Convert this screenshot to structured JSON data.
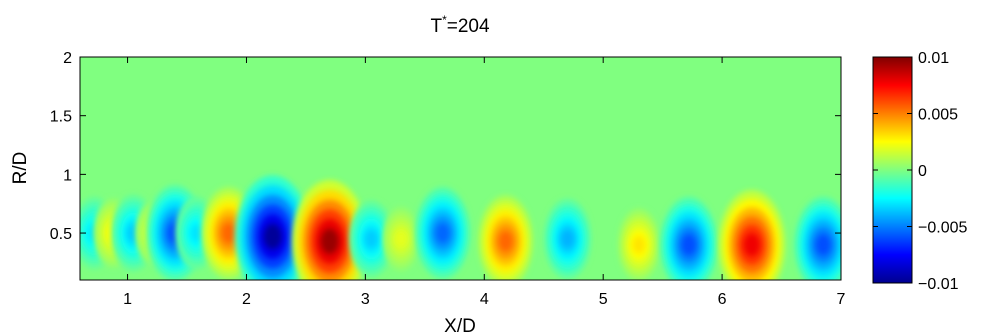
{
  "chart_data": {
    "type": "heatmap",
    "subtype": "filled-contour",
    "title_main": "T",
    "title_sup": "*",
    "title_rest": "=204",
    "xlabel": "X/D",
    "ylabel": "R/D",
    "xlim": [
      0.6,
      7.0
    ],
    "ylim": [
      0.1,
      2.0
    ],
    "xticks": [
      1,
      2,
      3,
      4,
      5,
      6,
      7
    ],
    "xtick_labels": [
      "1",
      "2",
      "3",
      "4",
      "5",
      "6",
      "7"
    ],
    "yticks": [
      0.5,
      1,
      1.5,
      2
    ],
    "ytick_labels": [
      "0.5",
      "1",
      "1.5",
      "2"
    ],
    "colormap": "jet",
    "clim": [
      -0.01,
      0.01
    ],
    "colorbar_ticks": [
      -0.01,
      -0.005,
      0,
      0.005,
      0.01
    ],
    "colorbar_tick_labels": [
      "−0.01",
      "−0.005",
      "0",
      "0.005",
      "0.01"
    ],
    "features": [
      {
        "x": 0.72,
        "r": 0.5,
        "value": -0.003
      },
      {
        "x": 0.88,
        "r": 0.5,
        "value": 0.0025
      },
      {
        "x": 1.05,
        "r": 0.5,
        "value": -0.0035
      },
      {
        "x": 1.22,
        "r": 0.5,
        "value": 0.002
      },
      {
        "x": 1.4,
        "r": 0.5,
        "value": -0.006
      },
      {
        "x": 1.58,
        "r": 0.5,
        "value": -0.003
      },
      {
        "x": 1.85,
        "r": 0.5,
        "value": 0.0055
      },
      {
        "x": 2.22,
        "r": 0.47,
        "value": -0.0095
      },
      {
        "x": 2.7,
        "r": 0.43,
        "value": 0.0095
      },
      {
        "x": 3.05,
        "r": 0.45,
        "value": -0.0035
      },
      {
        "x": 3.3,
        "r": 0.45,
        "value": 0.002
      },
      {
        "x": 3.65,
        "r": 0.5,
        "value": -0.0055
      },
      {
        "x": 4.18,
        "r": 0.43,
        "value": 0.0055
      },
      {
        "x": 4.7,
        "r": 0.45,
        "value": -0.004
      },
      {
        "x": 5.3,
        "r": 0.4,
        "value": 0.003
      },
      {
        "x": 5.72,
        "r": 0.4,
        "value": -0.006
      },
      {
        "x": 6.25,
        "r": 0.4,
        "value": 0.0078
      },
      {
        "x": 6.85,
        "r": 0.4,
        "value": -0.006
      }
    ]
  }
}
